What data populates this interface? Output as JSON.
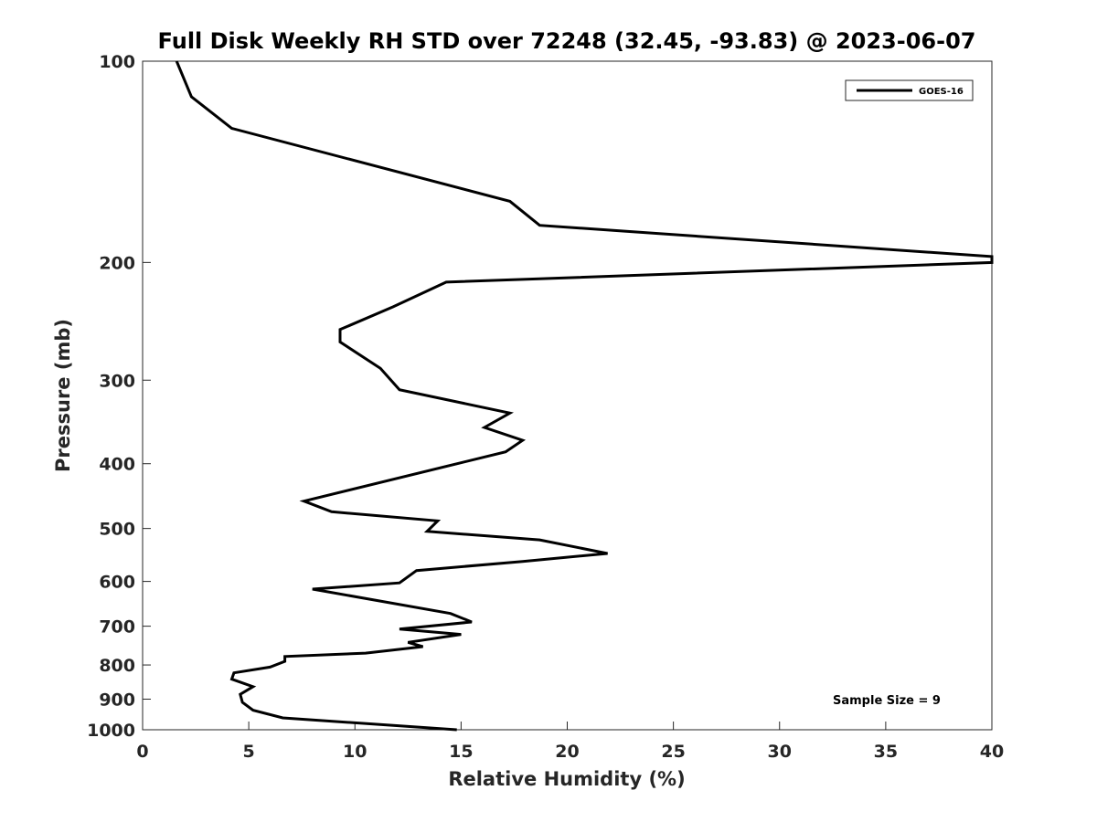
{
  "chart_data": {
    "type": "line",
    "title": "Full Disk Weekly RH STD over 72248 (32.45, -93.83) @ 2023-06-07",
    "xlabel": "Relative Humidity (%)",
    "ylabel": "Pressure (mb)",
    "xlim": [
      0,
      40
    ],
    "ylim": [
      1000,
      100
    ],
    "y_scale": "log",
    "y_reversed": true,
    "xticks": [
      0,
      5,
      10,
      15,
      20,
      25,
      30,
      35,
      40
    ],
    "yticks": [
      100,
      200,
      300,
      400,
      500,
      600,
      700,
      800,
      900,
      1000
    ],
    "grid": false,
    "legend_position": "top-right",
    "line_color": "#000000",
    "series": [
      {
        "name": "GOES-16",
        "x": [
          1.6,
          2.3,
          4.2,
          17.3,
          18.7,
          40,
          40,
          14.3,
          11.8,
          9.3,
          9.3,
          11.2,
          12.1,
          17.3,
          16.1,
          17.9,
          17.1,
          7.6,
          8.9,
          13.9,
          13.4,
          18.7,
          21.9,
          17.9,
          12.9,
          12.1,
          8.0,
          14.5,
          15.5,
          12.1,
          15.0,
          12.5,
          13.2,
          10.5,
          6.7,
          6.7,
          6.0,
          4.3,
          4.2,
          5.2,
          4.6,
          4.7,
          5.2,
          6.6,
          14.8
        ],
        "y": [
          100,
          113,
          126,
          162,
          176,
          196,
          200,
          214,
          233,
          252,
          263,
          288,
          310,
          336,
          353,
          369,
          384,
          455,
          472,
          487,
          505,
          520,
          545,
          560,
          578,
          603,
          616,
          670,
          690,
          707,
          720,
          740,
          751,
          768,
          777,
          790,
          806,
          822,
          840,
          862,
          885,
          910,
          935,
          960,
          1000
        ]
      }
    ],
    "annotations": [
      "Sample Size = 9"
    ]
  }
}
